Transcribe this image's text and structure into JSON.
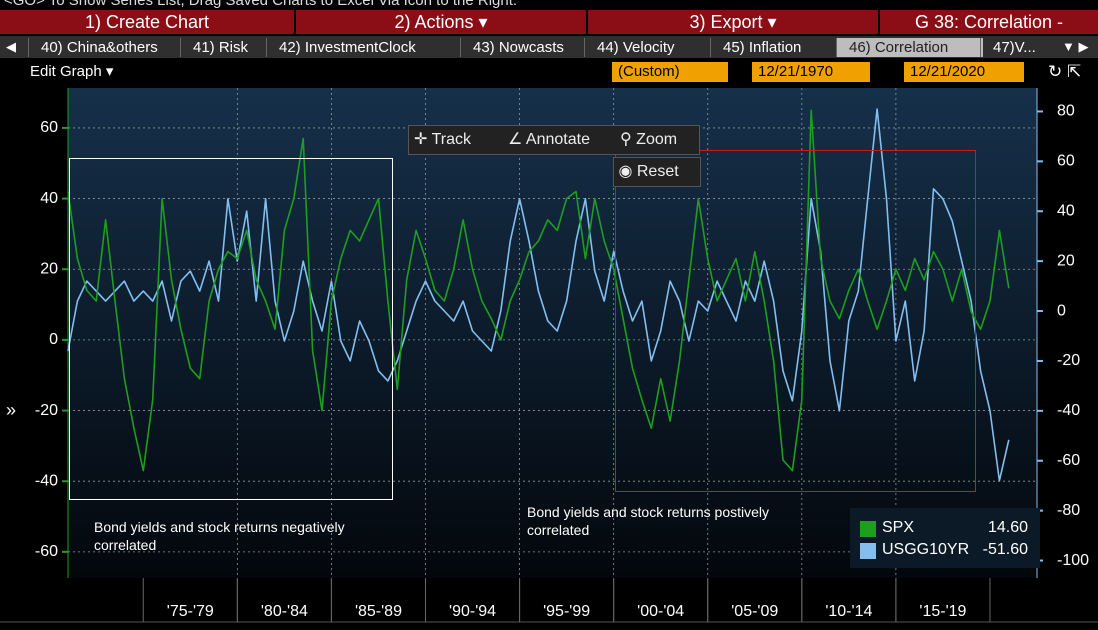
{
  "hint": "<GO> To Show Series List, Drag Saved Charts to Excel Via Icon to the Right.",
  "menu": [
    "1) Create Chart",
    "2) Actions",
    "3) Export"
  ],
  "page_title": "G 38: Correlation -",
  "tabs": [
    "40) China&others",
    "41) Risk",
    "42) InvestmentClock",
    "43) Nowcasts",
    "44) Velocity",
    "45) Inflation",
    "46) Correlation",
    "47)V..."
  ],
  "controls": {
    "edit": "Edit Graph",
    "period": "(Custom)",
    "start": "12/21/1970",
    "end": "12/21/2020"
  },
  "tools": [
    "Track",
    "Annotate",
    "Zoom",
    "Reset"
  ],
  "chart_data": {
    "type": "line",
    "annotations": [
      "Bond yields and stock returns negatively correlated",
      "Bond yields and stock returns postively correlated"
    ],
    "x": [
      1971,
      1971.5,
      1972,
      1972.5,
      1973,
      1973.5,
      1974,
      1974.5,
      1975,
      1975.5,
      1976,
      1976.5,
      1977,
      1977.5,
      1978,
      1978.5,
      1979,
      1979.5,
      1980,
      1980.5,
      1981,
      1981.5,
      1982,
      1982.5,
      1983,
      1983.5,
      1984,
      1984.5,
      1985,
      1985.5,
      1986,
      1986.5,
      1987,
      1987.5,
      1988,
      1988.5,
      1989,
      1989.5,
      1990,
      1990.5,
      1991,
      1991.5,
      1992,
      1992.5,
      1993,
      1993.5,
      1994,
      1994.5,
      1995,
      1995.5,
      1996,
      1996.5,
      1997,
      1997.5,
      1998,
      1998.5,
      1999,
      1999.5,
      2000,
      2000.5,
      2001,
      2001.5,
      2002,
      2002.5,
      2003,
      2003.5,
      2004,
      2004.5,
      2005,
      2005.5,
      2006,
      2006.5,
      2007,
      2007.5,
      2008,
      2008.5,
      2009,
      2009.5,
      2010,
      2010.5,
      2011,
      2011.5,
      2012,
      2012.5,
      2013,
      2013.5,
      2014,
      2014.5,
      2015,
      2015.5,
      2016,
      2016.5,
      2017,
      2017.5,
      2018,
      2018.5,
      2019,
      2019.5,
      2020,
      2020.5,
      2021
    ],
    "xlim": [
      1971,
      2022.5
    ],
    "xticks": [
      {
        "value": 1977.5,
        "label": "'75-'79"
      },
      {
        "value": 1982.5,
        "label": "'80-'84"
      },
      {
        "value": 1987.5,
        "label": "'85-'89"
      },
      {
        "value": 1992.5,
        "label": "'90-'94"
      },
      {
        "value": 1997.5,
        "label": "'95-'99"
      },
      {
        "value": 2002.5,
        "label": "'00-'04"
      },
      {
        "value": 2007.5,
        "label": "'05-'09"
      },
      {
        "value": 2012.5,
        "label": "'10-'14"
      },
      {
        "value": 2017.5,
        "label": "'15-'19"
      }
    ],
    "ylim": [
      -67.4,
      71.3
    ],
    "yticks": [
      -60,
      -40,
      -20,
      0,
      20,
      40,
      60
    ],
    "y2lim": [
      -107,
      89.4
    ],
    "y2ticks": [
      -100,
      -80,
      -60,
      -40,
      -20,
      0,
      20,
      40,
      60,
      80
    ],
    "grid": true,
    "series": [
      {
        "name": "SPX",
        "color": "#1e9e1e",
        "value_label": "14.60",
        "values": [
          42,
          23,
          14,
          11,
          34,
          11,
          -11,
          -25,
          -37,
          -17,
          40,
          17,
          3,
          -8,
          -11,
          11,
          20,
          25,
          23,
          31,
          17,
          11,
          3,
          31,
          40,
          57,
          -3,
          -20,
          11,
          23,
          31,
          28,
          34,
          40,
          11,
          -14,
          17,
          31,
          23,
          14,
          11,
          20,
          34,
          20,
          11,
          6,
          0,
          11,
          17,
          25,
          28,
          34,
          31,
          40,
          42,
          23,
          40,
          28,
          20,
          6,
          -8,
          -17,
          -25,
          -11,
          -23,
          -6,
          17,
          40,
          23,
          11,
          17,
          23,
          11,
          25,
          11,
          -6,
          -34,
          -37,
          -17,
          65,
          23,
          11,
          6,
          14,
          20,
          11,
          3,
          11,
          20,
          14,
          23,
          17,
          25,
          20,
          11,
          20,
          8,
          3,
          11,
          31,
          14.6
        ]
      },
      {
        "name": "USGG10YR",
        "color": "#82bff0",
        "axis": "y2",
        "value_label": "-51.60",
        "values": [
          -16,
          4,
          12,
          8,
          4,
          8,
          12,
          4,
          8,
          4,
          12,
          -4,
          12,
          16,
          8,
          20,
          4,
          45,
          20,
          40,
          4,
          45,
          4,
          -12,
          0,
          20,
          4,
          -8,
          12,
          -12,
          -20,
          -4,
          -12,
          -24,
          -28,
          -20,
          -8,
          4,
          12,
          4,
          0,
          -4,
          4,
          -8,
          -12,
          -16,
          0,
          28,
          45,
          28,
          8,
          -4,
          -8,
          4,
          28,
          45,
          16,
          4,
          24,
          8,
          -4,
          4,
          -20,
          -8,
          12,
          4,
          -12,
          4,
          0,
          12,
          4,
          -4,
          12,
          4,
          20,
          4,
          -24,
          -36,
          -8,
          45,
          24,
          -20,
          -40,
          -4,
          8,
          45,
          81,
          45,
          -12,
          4,
          -28,
          -8,
          49,
          45,
          36,
          20,
          4,
          -24,
          -40,
          -68,
          -51.6
        ]
      }
    ]
  }
}
